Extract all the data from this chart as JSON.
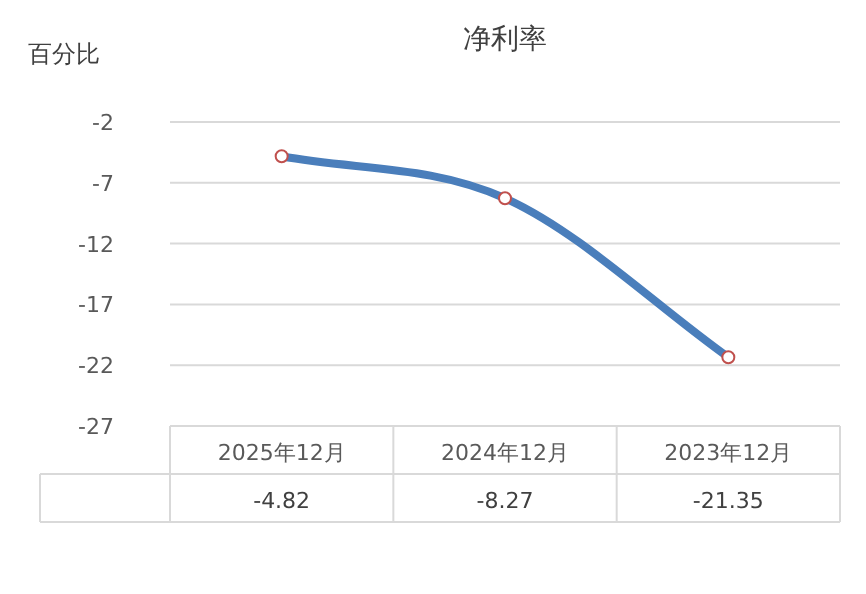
{
  "chart_data": {
    "type": "line",
    "title": "净利率",
    "ylabel": "百分比",
    "categories": [
      "2025年12月",
      "2024年12月",
      "2023年12月"
    ],
    "series": [
      {
        "color": "#4a7ebb",
        "values": [
          -4.82,
          -8.27,
          -21.35
        ]
      }
    ],
    "ylim": [
      -27,
      -2
    ],
    "yticks": [
      -2,
      -7,
      -12,
      -17,
      -22,
      -27
    ],
    "grid": "y",
    "marker": "circle",
    "data_labels": true
  }
}
